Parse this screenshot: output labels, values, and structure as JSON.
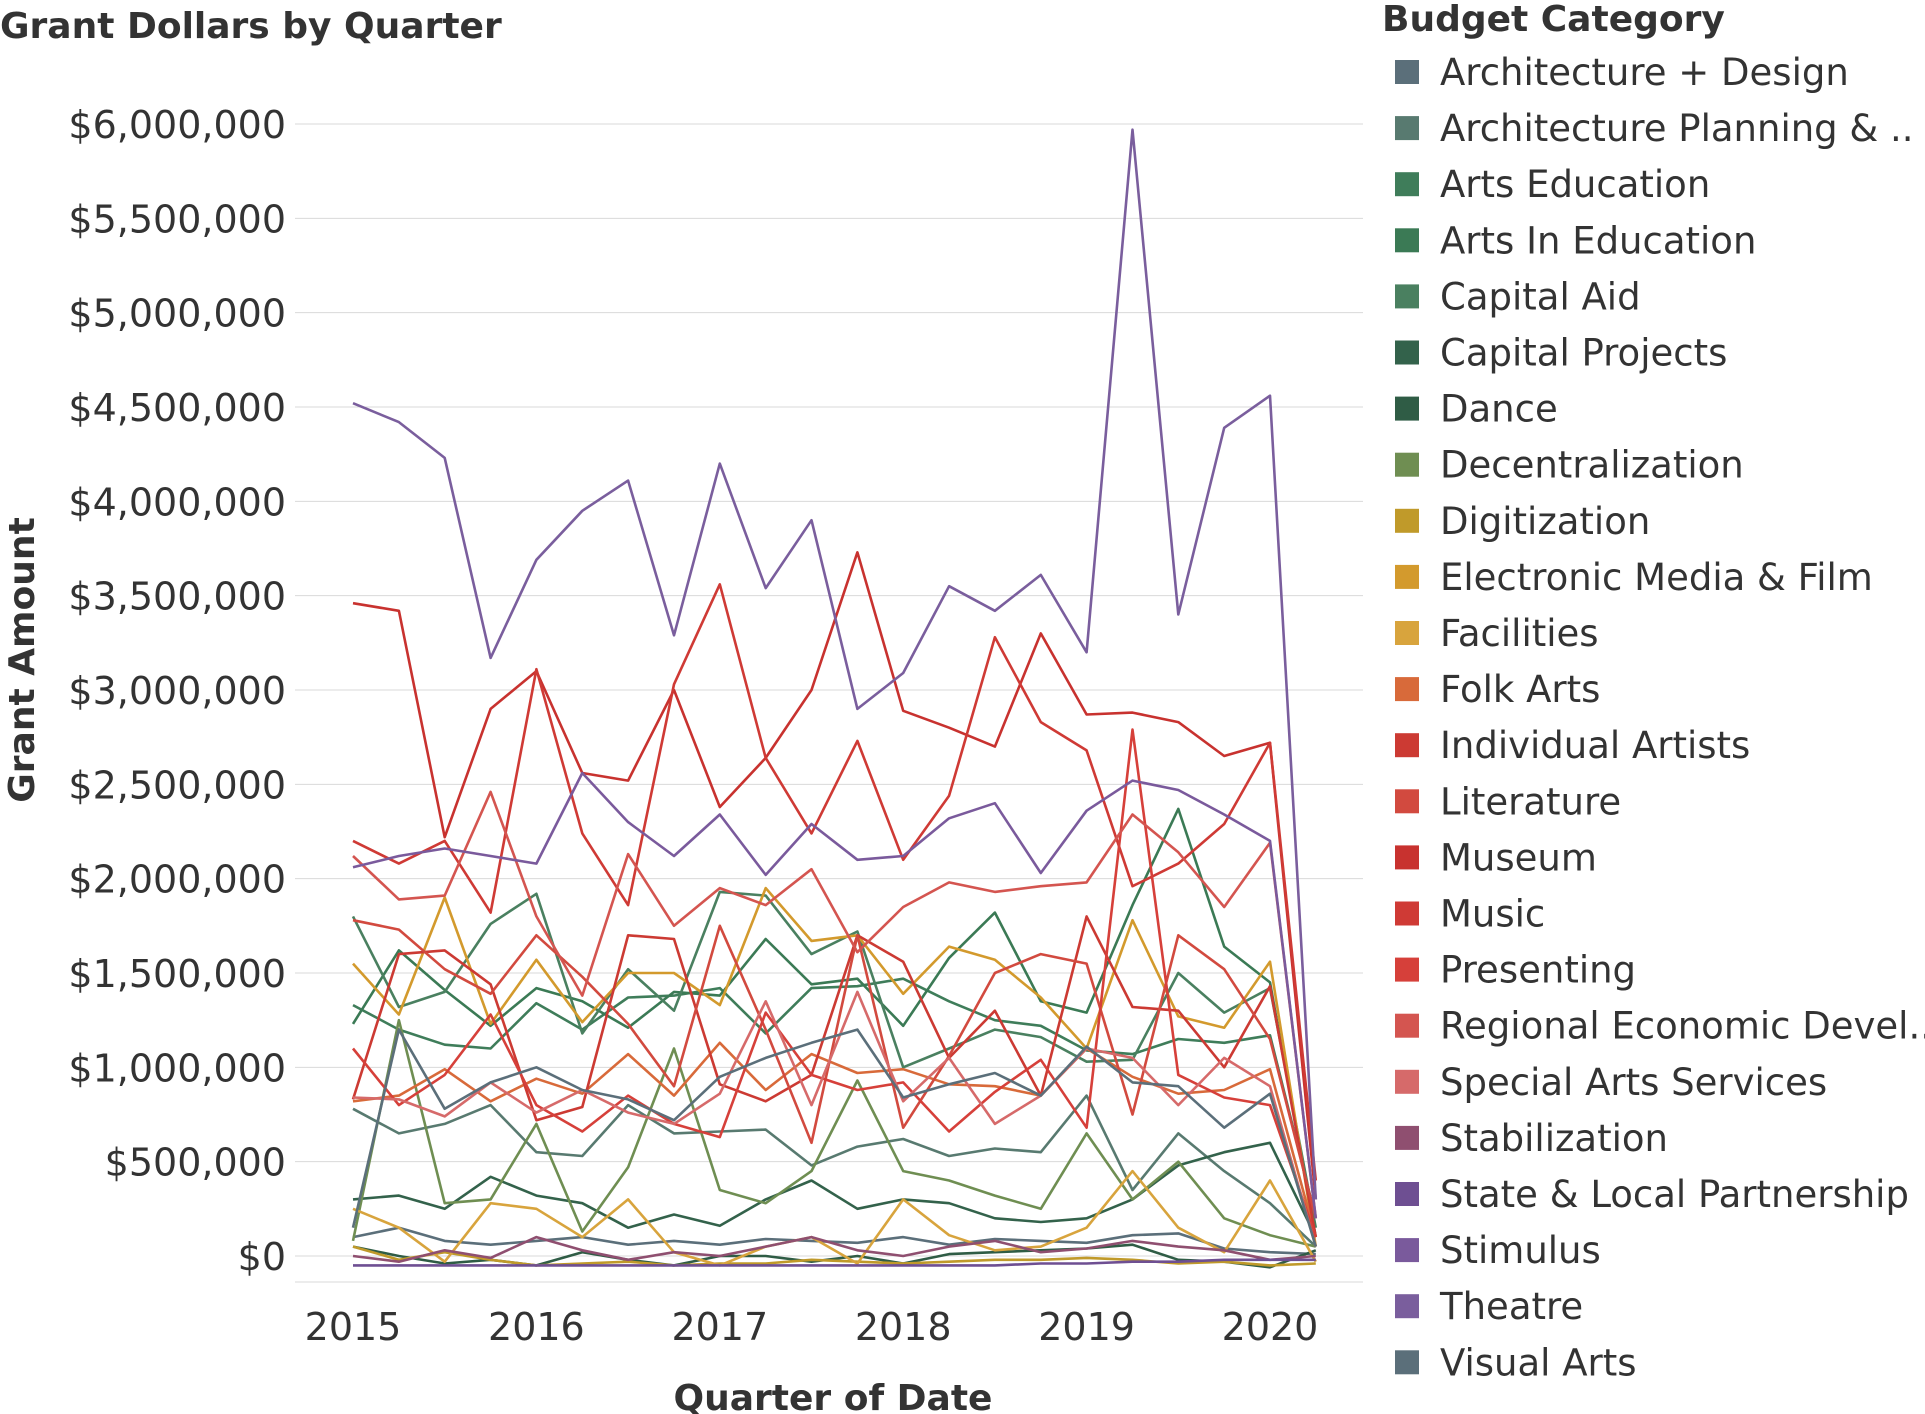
{
  "chart_data": {
    "type": "line",
    "title": "Grant Dollars by Quarter",
    "xlabel": "Quarter of Date",
    "ylabel": "Grant Amount",
    "ylim": [
      -150000,
      6250000
    ],
    "grid": true,
    "legend_position": "right",
    "legend_title": "Budget Category",
    "x_tick_labels": [
      "2015",
      "2016",
      "2017",
      "2018",
      "2019",
      "2020"
    ],
    "y_ticks": [
      0,
      500000,
      1000000,
      1500000,
      2000000,
      2500000,
      3000000,
      3500000,
      4000000,
      4500000,
      5000000,
      5500000,
      6000000
    ],
    "y_tick_labels": [
      "$0",
      "$500,000",
      "$1,000,000",
      "$1,500,000",
      "$2,000,000",
      "$2,500,000",
      "$3,000,000",
      "$3,500,000",
      "$4,000,000",
      "$4,500,000",
      "$5,000,000",
      "$5,500,000",
      "$6,000,000"
    ],
    "x": [
      "2015 Q1",
      "2015 Q2",
      "2015 Q3",
      "2015 Q4",
      "2016 Q1",
      "2016 Q2",
      "2016 Q3",
      "2016 Q4",
      "2017 Q1",
      "2017 Q2",
      "2017 Q3",
      "2017 Q4",
      "2018 Q1",
      "2018 Q2",
      "2018 Q3",
      "2018 Q4",
      "2019 Q1",
      "2019 Q2",
      "2019 Q3",
      "2019 Q4",
      "2020 Q1",
      "2020 Q2"
    ],
    "series": [
      {
        "name": "Architecture + Design",
        "color": "#5b6f7a",
        "values": [
          100000,
          150000,
          80000,
          60000,
          80000,
          100000,
          60000,
          80000,
          60000,
          90000,
          80000,
          70000,
          100000,
          60000,
          90000,
          80000,
          70000,
          110000,
          120000,
          40000,
          20000,
          10000
        ]
      },
      {
        "name": "Architecture Planning & ..",
        "color": "#587a70",
        "values": [
          780000,
          650000,
          700000,
          800000,
          550000,
          530000,
          800000,
          650000,
          660000,
          670000,
          480000,
          580000,
          620000,
          530000,
          570000,
          550000,
          850000,
          350000,
          650000,
          450000,
          280000,
          50000
        ]
      },
      {
        "name": "Arts Education",
        "color": "#3f7d5a",
        "values": [
          1330000,
          1200000,
          1120000,
          1100000,
          1340000,
          1200000,
          1370000,
          1380000,
          1420000,
          1180000,
          1420000,
          1430000,
          1470000,
          1350000,
          1250000,
          1220000,
          1090000,
          1070000,
          1150000,
          1130000,
          1170000,
          200000
        ]
      },
      {
        "name": "Arts In Education",
        "color": "#3b7a55",
        "values": [
          1230000,
          1620000,
          1410000,
          1220000,
          1420000,
          1350000,
          1210000,
          1400000,
          1380000,
          1680000,
          1440000,
          1470000,
          1220000,
          1580000,
          1820000,
          1350000,
          1290000,
          1860000,
          2370000,
          1640000,
          1450000,
          100000
        ]
      },
      {
        "name": "Capital Aid",
        "color": "#4a8060",
        "values": [
          1800000,
          1320000,
          1400000,
          1760000,
          1920000,
          1180000,
          1520000,
          1300000,
          1930000,
          1910000,
          1600000,
          1720000,
          1000000,
          1100000,
          1200000,
          1160000,
          1030000,
          1040000,
          1500000,
          1290000,
          1420000,
          150000
        ]
      },
      {
        "name": "Capital Projects",
        "color": "#33624b",
        "values": [
          300000,
          320000,
          250000,
          420000,
          320000,
          280000,
          150000,
          220000,
          160000,
          300000,
          400000,
          250000,
          300000,
          280000,
          200000,
          180000,
          200000,
          300000,
          480000,
          550000,
          600000,
          100000
        ]
      },
      {
        "name": "Dance",
        "color": "#2f5c45",
        "values": [
          50000,
          0,
          -40000,
          -20000,
          -50000,
          20000,
          -20000,
          -50000,
          0,
          0,
          -30000,
          0,
          -40000,
          10000,
          20000,
          30000,
          40000,
          60000,
          -20000,
          -30000,
          -60000,
          30000
        ]
      },
      {
        "name": "Decentralization",
        "color": "#6f8e52",
        "values": [
          80000,
          1250000,
          280000,
          300000,
          700000,
          130000,
          470000,
          1100000,
          350000,
          280000,
          450000,
          930000,
          450000,
          400000,
          320000,
          250000,
          650000,
          300000,
          500000,
          200000,
          110000,
          50000
        ]
      },
      {
        "name": "Digitization",
        "color": "#c09a2a",
        "values": [
          50000,
          -20000,
          20000,
          -20000,
          -50000,
          -40000,
          -30000,
          -50000,
          -40000,
          -40000,
          -20000,
          -30000,
          -40000,
          -30000,
          -20000,
          -20000,
          -10000,
          -20000,
          -40000,
          -30000,
          -50000,
          -40000
        ]
      },
      {
        "name": "Electronic Media & Film",
        "color": "#d39a2d",
        "values": [
          1550000,
          1280000,
          1900000,
          1230000,
          1570000,
          1240000,
          1500000,
          1500000,
          1330000,
          1950000,
          1670000,
          1700000,
          1390000,
          1640000,
          1570000,
          1370000,
          1100000,
          1780000,
          1270000,
          1210000,
          1560000,
          50000
        ]
      },
      {
        "name": "Facilities",
        "color": "#d8a43d",
        "values": [
          250000,
          150000,
          -30000,
          280000,
          250000,
          100000,
          300000,
          20000,
          -50000,
          50000,
          100000,
          -40000,
          300000,
          110000,
          30000,
          50000,
          150000,
          450000,
          150000,
          20000,
          400000,
          -30000
        ]
      },
      {
        "name": "Folk Arts",
        "color": "#d86a3a",
        "values": [
          820000,
          850000,
          990000,
          820000,
          940000,
          860000,
          1070000,
          850000,
          1130000,
          880000,
          1070000,
          970000,
          990000,
          910000,
          900000,
          850000,
          1100000,
          950000,
          860000,
          880000,
          990000,
          100000
        ]
      },
      {
        "name": "Individual Artists",
        "color": "#cc3a33",
        "values": [
          830000,
          1600000,
          1620000,
          1440000,
          720000,
          790000,
          1700000,
          1680000,
          910000,
          820000,
          960000,
          1700000,
          1560000,
          1050000,
          1300000,
          850000,
          1800000,
          1320000,
          1300000,
          1000000,
          1430000,
          100000
        ]
      },
      {
        "name": "Literature",
        "color": "#d24a3f",
        "values": [
          1780000,
          1730000,
          1520000,
          1390000,
          1700000,
          1480000,
          1230000,
          900000,
          1750000,
          1200000,
          600000,
          1700000,
          680000,
          1060000,
          1500000,
          1600000,
          1550000,
          750000,
          1700000,
          1520000,
          1150000,
          200000
        ]
      },
      {
        "name": "Museum",
        "color": "#c8322f",
        "values": [
          3460000,
          3420000,
          2220000,
          2900000,
          3100000,
          2560000,
          2520000,
          3000000,
          2380000,
          2640000,
          3000000,
          3730000,
          2890000,
          2800000,
          2700000,
          3300000,
          2870000,
          2880000,
          2830000,
          2650000,
          2720000,
          300000
        ]
      },
      {
        "name": "Music",
        "color": "#cf3a35",
        "values": [
          2200000,
          2080000,
          2200000,
          1820000,
          3110000,
          2240000,
          1860000,
          3030000,
          3560000,
          2640000,
          2240000,
          2730000,
          2100000,
          2440000,
          3280000,
          2830000,
          2680000,
          1960000,
          2080000,
          2290000,
          2720000,
          400000
        ]
      },
      {
        "name": "Presenting",
        "color": "#d6403a",
        "values": [
          1100000,
          800000,
          960000,
          1280000,
          800000,
          660000,
          850000,
          700000,
          630000,
          1290000,
          960000,
          880000,
          920000,
          660000,
          870000,
          1040000,
          680000,
          2790000,
          960000,
          840000,
          800000,
          100000
        ]
      },
      {
        "name": "Regional Economic Devel..",
        "color": "#d45550",
        "values": [
          2120000,
          1890000,
          1910000,
          2460000,
          1800000,
          1380000,
          2130000,
          1750000,
          1950000,
          1860000,
          2050000,
          1610000,
          1850000,
          1980000,
          1930000,
          1960000,
          1980000,
          2340000,
          2140000,
          1850000,
          2190000,
          200000
        ]
      },
      {
        "name": "Special Arts Services",
        "color": "#d66a6a",
        "values": [
          840000,
          830000,
          740000,
          920000,
          760000,
          880000,
          760000,
          700000,
          860000,
          1350000,
          800000,
          1400000,
          820000,
          1050000,
          700000,
          850000,
          1100000,
          1050000,
          800000,
          1050000,
          900000,
          50000
        ]
      },
      {
        "name": "Stabilization",
        "color": "#8f4f70",
        "values": [
          0,
          -30000,
          30000,
          -10000,
          100000,
          30000,
          -20000,
          20000,
          0,
          50000,
          100000,
          30000,
          0,
          50000,
          80000,
          20000,
          40000,
          80000,
          50000,
          30000,
          -20000,
          0
        ]
      },
      {
        "name": "State & Local Partnership",
        "color": "#6e4f92",
        "values": [
          -50000,
          -50000,
          -50000,
          -50000,
          -50000,
          -50000,
          -50000,
          -50000,
          -50000,
          -50000,
          -50000,
          -50000,
          -50000,
          -50000,
          -50000,
          -40000,
          -40000,
          -30000,
          -30000,
          -20000,
          -20000,
          -20000
        ]
      },
      {
        "name": "Stimulus",
        "color": "#7a5a9c",
        "values": [
          2060000,
          2120000,
          2160000,
          2120000,
          2080000,
          2560000,
          2300000,
          2120000,
          2340000,
          2020000,
          2290000,
          2100000,
          2120000,
          2320000,
          2400000,
          2030000,
          2360000,
          2520000,
          2470000,
          2340000,
          2200000,
          200000
        ]
      },
      {
        "name": "Theatre",
        "color": "#7a5e9d",
        "values": [
          4520000,
          4420000,
          4230000,
          3170000,
          3690000,
          3950000,
          4110000,
          3290000,
          4200000,
          3540000,
          3900000,
          2900000,
          3090000,
          3550000,
          3420000,
          3610000,
          3200000,
          5970000,
          3400000,
          4390000,
          4560000,
          300000
        ]
      },
      {
        "name": "Visual Arts",
        "color": "#5b6f7a",
        "values": [
          150000,
          1200000,
          780000,
          920000,
          1000000,
          880000,
          830000,
          720000,
          950000,
          1050000,
          1130000,
          1200000,
          840000,
          910000,
          970000,
          850000,
          1110000,
          920000,
          900000,
          680000,
          860000,
          50000
        ]
      }
    ]
  }
}
